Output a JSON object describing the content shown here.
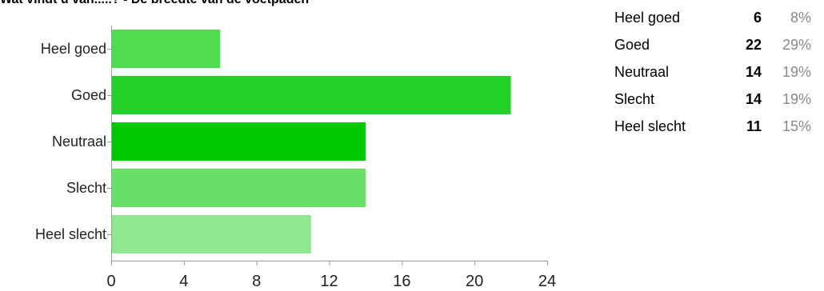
{
  "chart_data": {
    "type": "bar",
    "orientation": "horizontal",
    "title": "Wat vindt u van.....? - De breedte van de voetpaden",
    "categories": [
      "Heel goed",
      "Goed",
      "Neutraal",
      "Slecht",
      "Heel slecht"
    ],
    "values": [
      6,
      22,
      14,
      14,
      11
    ],
    "colors": [
      "#4fdc4f",
      "#22d22a",
      "#00c800",
      "#66e066",
      "#8fe88f"
    ],
    "xlim": [
      0,
      24
    ],
    "xticks": [
      "0",
      "4",
      "8",
      "12",
      "16",
      "20",
      "24"
    ],
    "grid": false
  },
  "summary": {
    "rows": [
      {
        "label": "Heel goed",
        "count": "6",
        "percent": "8%"
      },
      {
        "label": "Goed",
        "count": "22",
        "percent": "29%"
      },
      {
        "label": "Neutraal",
        "count": "14",
        "percent": "19%"
      },
      {
        "label": "Slecht",
        "count": "14",
        "percent": "19%"
      },
      {
        "label": "Heel slecht",
        "count": "11",
        "percent": "15%"
      }
    ]
  }
}
